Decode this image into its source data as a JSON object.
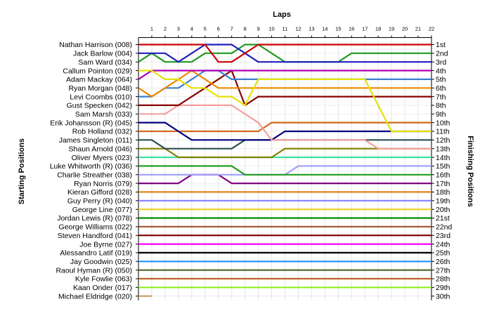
{
  "chart_data": {
    "type": "line",
    "title": "",
    "xlabel": "Laps",
    "ylabel_left": "Starting Positions",
    "ylabel_right": "Finishing Positions",
    "laps": [
      1,
      2,
      3,
      4,
      5,
      6,
      7,
      8,
      9,
      10,
      11,
      12,
      13,
      14,
      15,
      16,
      17,
      18,
      19,
      20,
      21,
      22
    ],
    "position_labels": [
      "1st",
      "2nd",
      "3rd",
      "4th",
      "5th",
      "6th",
      "7th",
      "8th",
      "9th",
      "10th",
      "11th",
      "12th",
      "13th",
      "14th",
      "15th",
      "16th",
      "17th",
      "18th",
      "19th",
      "20th",
      "21st",
      "22nd",
      "23rd",
      "24th",
      "25th",
      "26th",
      "27th",
      "28th",
      "29th",
      "30th"
    ],
    "grid": true,
    "series": [
      {
        "name": "Nathan Harrison (008)",
        "color": "#cc0000",
        "positions": [
          1,
          1,
          1,
          1,
          1,
          1,
          3,
          3,
          2,
          1,
          1,
          1,
          1,
          1,
          1,
          1,
          1,
          1,
          1,
          1,
          1,
          1,
          1
        ]
      },
      {
        "name": "Jack Barlow (004)",
        "color": "#1f1fbf",
        "positions": [
          2,
          2,
          2,
          3,
          2,
          1,
          1,
          1,
          2,
          3,
          3,
          3,
          3,
          3,
          3,
          3,
          3,
          3,
          3,
          3,
          3,
          3,
          3
        ]
      },
      {
        "name": "Sam Ward (034)",
        "color": "#209a20",
        "positions": [
          3,
          2,
          3,
          3,
          3,
          2,
          2,
          2,
          1,
          1,
          2,
          3,
          3,
          3,
          3,
          3,
          2,
          2,
          2,
          2,
          2,
          2,
          2
        ]
      },
      {
        "name": "Callum Pointon (029)",
        "color": "#e3e300",
        "positions": [
          4,
          4,
          5,
          5,
          6,
          6,
          7,
          7,
          8,
          5,
          5,
          5,
          5,
          5,
          5,
          5,
          5,
          5,
          8,
          11,
          11,
          11,
          11
        ]
      },
      {
        "name": "Adam Mackay (064)",
        "color": "#b000b0",
        "positions": [
          5,
          4,
          4,
          4,
          4,
          4,
          4,
          4,
          4,
          4,
          4,
          4,
          4,
          4,
          4,
          4,
          4,
          4,
          4,
          4,
          4,
          4,
          4
        ]
      },
      {
        "name": "Ryan Morgan (048)",
        "color": "#ee8800",
        "positions": [
          6,
          7,
          6,
          5,
          4,
          5,
          6,
          6,
          6,
          6,
          6,
          6,
          6,
          6,
          6,
          6,
          6,
          6,
          6,
          6,
          6,
          6,
          6
        ]
      },
      {
        "name": "Levi Coombs (010)",
        "color": "#3a7fd0",
        "positions": [
          7,
          7,
          6,
          6,
          5,
          4,
          4,
          5,
          5,
          5,
          5,
          5,
          5,
          5,
          5,
          5,
          5,
          5,
          5,
          5,
          5,
          5,
          5
        ]
      },
      {
        "name": "Gust Specken (042)",
        "color": "#8b0000",
        "positions": [
          8,
          8,
          8,
          8,
          7,
          6,
          5,
          4,
          8,
          7,
          7,
          7,
          7,
          7,
          7,
          7,
          7,
          7,
          7,
          7,
          7,
          7,
          7
        ]
      },
      {
        "name": "Sam Marsh (033)",
        "color": "#f4a0a0",
        "positions": [
          9,
          9,
          9,
          8,
          8,
          8,
          8,
          8,
          9,
          10,
          12,
          12,
          12,
          12,
          12,
          12,
          12,
          12,
          13,
          13,
          13,
          13,
          13
        ]
      },
      {
        "name": "Erik Johansson (R) (045)",
        "color": "#000080",
        "positions": [
          10,
          10,
          10,
          11,
          12,
          12,
          12,
          12,
          12,
          12,
          12,
          11,
          11,
          11,
          11,
          11,
          11,
          11,
          11,
          11,
          11,
          11,
          11
        ]
      },
      {
        "name": "Rob Holland (032)",
        "color": "#d2691e",
        "positions": [
          11,
          11,
          11,
          11,
          11,
          11,
          11,
          11,
          11,
          11,
          10,
          10,
          10,
          10,
          10,
          10,
          10,
          10,
          10,
          10,
          10,
          10,
          10
        ]
      },
      {
        "name": "James Singleton (011)",
        "color": "#2f4f4f",
        "positions": [
          12,
          12,
          13,
          13,
          13,
          13,
          13,
          13,
          12,
          12,
          12,
          12,
          12,
          12,
          12,
          12,
          12,
          12,
          12,
          12,
          12,
          12,
          12
        ]
      },
      {
        "name": "Shaun Arnold (046)",
        "color": "#808000",
        "positions": [
          13,
          13,
          13,
          14,
          14,
          14,
          14,
          14,
          14,
          14,
          14,
          13,
          13,
          13,
          13,
          13,
          13,
          13,
          13,
          13,
          13,
          13,
          13
        ]
      },
      {
        "name": "Oliver Myers (023)",
        "color": "#40e0a0",
        "positions": [
          14,
          14,
          14,
          14,
          14,
          14,
          14,
          14,
          14,
          14,
          14,
          14,
          14,
          14,
          14,
          14,
          14,
          14,
          14,
          14,
          14,
          14,
          14
        ]
      },
      {
        "name": "Luke Whitworth (R) (036)",
        "color": "#20a020",
        "positions": [
          15,
          15,
          15,
          15,
          15,
          15,
          15,
          15,
          16,
          16,
          16,
          16,
          16,
          16,
          16,
          16,
          16,
          16,
          16,
          16,
          16,
          16,
          16
        ]
      },
      {
        "name": "Charlie Streather (038)",
        "color": "#a0a0ff",
        "positions": [
          16,
          16,
          16,
          16,
          16,
          16,
          16,
          16,
          16,
          16,
          16,
          16,
          15,
          15,
          15,
          15,
          15,
          15,
          15,
          15,
          15,
          15,
          15
        ]
      },
      {
        "name": "Ryan Norris (079)",
        "color": "#800080",
        "positions": [
          17,
          17,
          17,
          17,
          16,
          16,
          16,
          17,
          17,
          17,
          17,
          17,
          17,
          17,
          17,
          17,
          17,
          17,
          17,
          17,
          17,
          17,
          17
        ]
      },
      {
        "name": "Kieran Gifford (028)",
        "color": "#e08020",
        "positions": [
          18,
          18,
          18,
          18,
          18,
          18,
          18,
          18,
          18,
          18,
          18,
          18,
          18,
          18,
          18,
          18,
          18,
          18,
          18,
          18,
          18,
          18,
          18
        ]
      },
      {
        "name": "Guy Perry (R) (040)",
        "color": "#8080ff",
        "positions": [
          19,
          19,
          19,
          19,
          19,
          19,
          19,
          19,
          19,
          19,
          19,
          19,
          19,
          19,
          19,
          19,
          19,
          19,
          19,
          19,
          19,
          19,
          19
        ]
      },
      {
        "name": "George Line (077)",
        "color": "#f0d030",
        "positions": [
          20,
          20,
          20,
          20,
          20,
          20,
          20,
          20,
          20,
          20,
          20,
          20,
          20,
          20,
          20,
          20,
          20,
          20,
          20,
          20,
          20,
          20,
          20
        ]
      },
      {
        "name": "Jordan Lewis (R) (078)",
        "color": "#009000",
        "positions": [
          21,
          21,
          21,
          21,
          21,
          21,
          21,
          21,
          21,
          21,
          21,
          21,
          21,
          21,
          21,
          21,
          21,
          21,
          21,
          21,
          21,
          21,
          21
        ]
      },
      {
        "name": "George Williams (022)",
        "color": "#a0522d",
        "positions": [
          22,
          22,
          22,
          22,
          22,
          22,
          22,
          22,
          22,
          22,
          22,
          22,
          22,
          22,
          22,
          22,
          22,
          22,
          22,
          22,
          22,
          22,
          22
        ]
      },
      {
        "name": "Steven Handford (041)",
        "color": "#7a0000",
        "positions": [
          23,
          23,
          23,
          23,
          23,
          23,
          23,
          23,
          23,
          23,
          23,
          23,
          23,
          23,
          23,
          23,
          23,
          23,
          23,
          23,
          23,
          23,
          23
        ]
      },
      {
        "name": "Joe Byrne (027)",
        "color": "#ff00ff",
        "positions": [
          24,
          24,
          24,
          24,
          24,
          24,
          24,
          24,
          24,
          24,
          24,
          24,
          24,
          24,
          24,
          24,
          24,
          24,
          24,
          24,
          24,
          24,
          24
        ]
      },
      {
        "name": "Alessandro Latif (019)",
        "color": "#000000",
        "positions": [
          25,
          25,
          25,
          25,
          25,
          25,
          25,
          25,
          25,
          25,
          25,
          25,
          25,
          25,
          25,
          25,
          25,
          25,
          25,
          25,
          25,
          25,
          25
        ]
      },
      {
        "name": "Jay Goodwin (025)",
        "color": "#1e90ff",
        "positions": [
          26,
          26,
          26,
          26,
          26,
          26,
          26,
          26,
          26,
          26,
          26,
          26,
          26,
          26,
          26,
          26,
          26,
          26,
          26,
          26,
          26,
          26,
          26
        ]
      },
      {
        "name": "Raoul Hyman (R) (050)",
        "color": "#556b2f",
        "positions": [
          27,
          27,
          27,
          27,
          27,
          27,
          27,
          27,
          27,
          27,
          27,
          27,
          27,
          27,
          27,
          27,
          27,
          27,
          27,
          27,
          27,
          27,
          27
        ]
      },
      {
        "name": "Kyle Fowlie (063)",
        "color": "#c06030",
        "positions": [
          28,
          28,
          28,
          28,
          28,
          28,
          28,
          28,
          28,
          28,
          28,
          28,
          28,
          28,
          28,
          28,
          28,
          28,
          28,
          28,
          28,
          28,
          28
        ]
      },
      {
        "name": "Kaan Onder (017)",
        "color": "#90ee20",
        "positions": [
          29,
          29,
          29,
          29,
          29,
          29,
          29,
          29,
          29,
          29,
          29,
          29,
          29,
          29,
          29,
          29,
          29,
          29,
          29,
          29,
          29,
          29,
          29
        ]
      },
      {
        "name": "Michael Eldridge (020)",
        "color": "#c8a060",
        "positions": [
          30,
          30
        ]
      }
    ]
  }
}
